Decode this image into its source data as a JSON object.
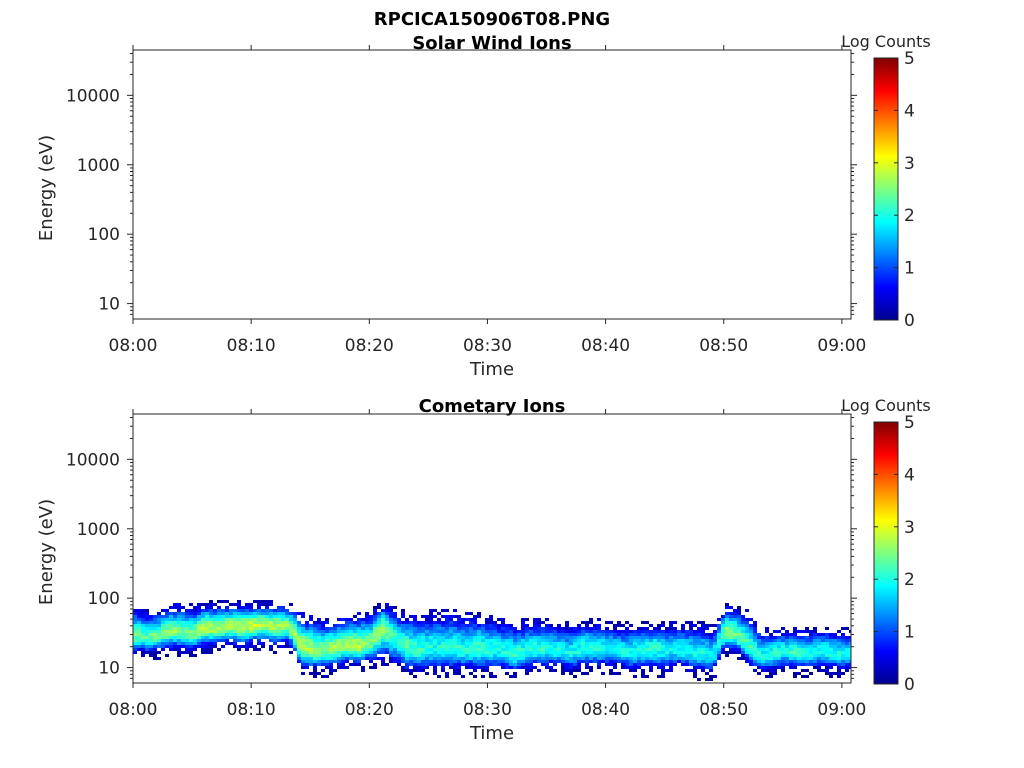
{
  "figure_title": "RPCICA150906T08.PNG",
  "colorbar_range": [
    0,
    5
  ],
  "chart_data": [
    {
      "type": "heatmap",
      "title": "Solar Wind Ions",
      "xlabel": "Time",
      "ylabel": "Energy (eV)",
      "x_ticks": [
        "08:00",
        "08:10",
        "08:20",
        "08:30",
        "08:40",
        "08:50",
        "09:00"
      ],
      "x_range": [
        "08:00",
        "09:00"
      ],
      "y_scale": "log",
      "y_ticks": [
        "10",
        "100",
        "1000",
        "10000"
      ],
      "y_range": [
        6,
        45000
      ],
      "colorbar": {
        "label": "Log Counts",
        "ticks": [
          "0",
          "1",
          "2",
          "3",
          "4",
          "5"
        ],
        "range": [
          0,
          5
        ],
        "colormap": "jet"
      },
      "data_description": "no counts displayed",
      "band": []
    },
    {
      "type": "heatmap",
      "title": "Cometary Ions",
      "xlabel": "Time",
      "ylabel": "Energy (eV)",
      "x_ticks": [
        "08:00",
        "08:10",
        "08:20",
        "08:30",
        "08:40",
        "08:50",
        "09:00"
      ],
      "x_range": [
        "08:00",
        "09:00"
      ],
      "y_scale": "log",
      "y_ticks": [
        "10",
        "100",
        "1000",
        "10000"
      ],
      "y_range": [
        6,
        45000
      ],
      "colorbar": {
        "label": "Log Counts",
        "ticks": [
          "0",
          "1",
          "2",
          "3",
          "4",
          "5"
        ],
        "range": [
          0,
          5
        ],
        "colormap": "jet"
      },
      "band_columns": [
        "time_min",
        "peak_energy_eV",
        "low_energy_eV",
        "high_energy_eV",
        "peak_log_counts"
      ],
      "band": [
        [
          0,
          30,
          18,
          70,
          2.4
        ],
        [
          1,
          28,
          17,
          60,
          2.3
        ],
        [
          2,
          30,
          18,
          65,
          2.4
        ],
        [
          3,
          36,
          20,
          75,
          2.6
        ],
        [
          4,
          34,
          20,
          75,
          2.5
        ],
        [
          5,
          32,
          19,
          70,
          2.5
        ],
        [
          6,
          40,
          22,
          80,
          2.8
        ],
        [
          7,
          38,
          22,
          80,
          2.6
        ],
        [
          8,
          42,
          24,
          80,
          2.7
        ],
        [
          9,
          40,
          22,
          80,
          2.8
        ],
        [
          10,
          42,
          24,
          80,
          2.9
        ],
        [
          11,
          44,
          25,
          80,
          2.8
        ],
        [
          12,
          40,
          22,
          80,
          2.7
        ],
        [
          13,
          42,
          24,
          80,
          2.6
        ],
        [
          14,
          20,
          11,
          55,
          2.8
        ],
        [
          15,
          19,
          10,
          50,
          2.6
        ],
        [
          16,
          18,
          10,
          45,
          2.5
        ],
        [
          17,
          20,
          11,
          50,
          2.7
        ],
        [
          18,
          22,
          12,
          55,
          2.6
        ],
        [
          19,
          21,
          12,
          55,
          2.7
        ],
        [
          20,
          24,
          13,
          60,
          2.5
        ],
        [
          21,
          40,
          15,
          80,
          2.6
        ],
        [
          22,
          28,
          12,
          65,
          2.2
        ],
        [
          23,
          20,
          10,
          55,
          2.3
        ],
        [
          24,
          18,
          10,
          55,
          2.1
        ],
        [
          25,
          20,
          10,
          60,
          2.0
        ],
        [
          26,
          19,
          10,
          60,
          2.0
        ],
        [
          27,
          20,
          10,
          60,
          2.1
        ],
        [
          28,
          18,
          10,
          55,
          2.0
        ],
        [
          29,
          20,
          10,
          55,
          2.2
        ],
        [
          30,
          19,
          10,
          50,
          2.1
        ],
        [
          31,
          18,
          10,
          50,
          1.9
        ],
        [
          32,
          16,
          9,
          40,
          2.2
        ],
        [
          33,
          18,
          10,
          45,
          2.0
        ],
        [
          34,
          20,
          11,
          45,
          2.1
        ],
        [
          35,
          19,
          11,
          45,
          2.0
        ],
        [
          36,
          18,
          11,
          40,
          2.0
        ],
        [
          37,
          17,
          10,
          40,
          1.9
        ],
        [
          38,
          20,
          11,
          45,
          2.1
        ],
        [
          39,
          19,
          11,
          45,
          2.0
        ],
        [
          40,
          20,
          11,
          40,
          2.0
        ],
        [
          41,
          18,
          11,
          40,
          1.9
        ],
        [
          42,
          17,
          10,
          40,
          2.0
        ],
        [
          43,
          19,
          10,
          40,
          2.0
        ],
        [
          44,
          20,
          10,
          40,
          2.1
        ],
        [
          45,
          18,
          10,
          40,
          1.9
        ],
        [
          46,
          20,
          11,
          40,
          2.0
        ],
        [
          47,
          18,
          10,
          40,
          1.9
        ],
        [
          48,
          16,
          9,
          40,
          2.0
        ],
        [
          49,
          15,
          9,
          35,
          1.8
        ],
        [
          50,
          35,
          20,
          75,
          2.5
        ],
        [
          51,
          30,
          18,
          70,
          2.4
        ],
        [
          52,
          20,
          12,
          55,
          2.2
        ],
        [
          53,
          14,
          9,
          35,
          2.0
        ],
        [
          54,
          16,
          10,
          35,
          2.1
        ],
        [
          55,
          18,
          11,
          35,
          2.0
        ],
        [
          56,
          17,
          10,
          35,
          2.1
        ],
        [
          57,
          16,
          10,
          35,
          2.0
        ],
        [
          58,
          18,
          11,
          35,
          2.0
        ],
        [
          59,
          17,
          10,
          35,
          2.0
        ],
        [
          60,
          16,
          10,
          35,
          1.9
        ]
      ]
    }
  ]
}
